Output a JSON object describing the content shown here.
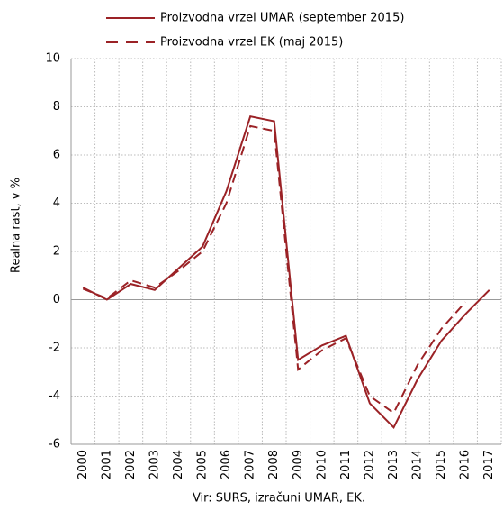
{
  "chart_data": {
    "type": "line",
    "y_label": "Realna rast, v %",
    "source": "Vir: SURS, izračuni UMAR, EK.",
    "categories": [
      "2000",
      "2001",
      "2002",
      "2003",
      "2004",
      "2005",
      "2006",
      "2007",
      "2008",
      "2009",
      "2010",
      "2011",
      "2012",
      "2013",
      "2014",
      "2015",
      "2016",
      "2017"
    ],
    "series": [
      {
        "name": "Proizvodna vrzel UMAR (september 2015)",
        "color": "#9b2226",
        "dash": false,
        "values": [
          0.5,
          0.0,
          0.65,
          0.4,
          1.3,
          2.2,
          4.5,
          7.6,
          7.4,
          -2.5,
          -1.9,
          -1.5,
          -4.3,
          -5.3,
          -3.3,
          -1.7,
          -0.6,
          0.4
        ]
      },
      {
        "name": "Proizvodna vrzel EK (maj 2015)",
        "color": "#9b2226",
        "dash": true,
        "values": [
          0.45,
          0.05,
          0.8,
          0.5,
          1.2,
          2.0,
          4.0,
          7.2,
          7.0,
          -2.9,
          -2.1,
          -1.6,
          -4.0,
          -4.7,
          -2.7,
          -1.2,
          -0.1,
          null
        ]
      }
    ],
    "ylim": [
      -6,
      10
    ],
    "yticks": [
      -6,
      -4,
      -2,
      0,
      2,
      4,
      6,
      8,
      10
    ],
    "grid": true
  }
}
